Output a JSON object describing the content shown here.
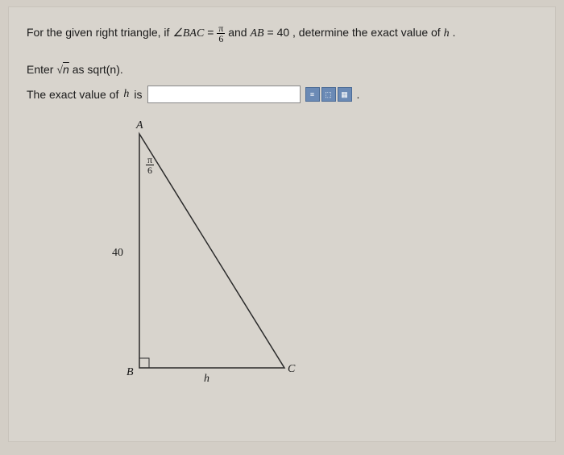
{
  "question": {
    "prefix": "For the given right triangle, if ",
    "angle_label": "∠BAC",
    "eq1": " = ",
    "frac_num": "π",
    "frac_den": "6",
    "mid": " and ",
    "side_label": "AB",
    "eq2": " = ",
    "side_value": "40",
    "suffix": ", determine the exact value of ",
    "var": "h",
    "end": "."
  },
  "instruction": {
    "prefix": "Enter ",
    "sqrt_sym": "√",
    "sqrt_arg": "n",
    "suffix": " as sqrt(n)."
  },
  "answer": {
    "prefix": "The exact value of ",
    "var": "h",
    "suffix": " is",
    "value": "",
    "period": "."
  },
  "icons": {
    "symbol1": "≡",
    "symbol2": "⬚",
    "symbol3": "▦"
  },
  "diagram": {
    "A": "A",
    "B": "B",
    "C": "C",
    "angle_num": "π",
    "angle_den": "6",
    "side_ab": "40",
    "side_bc": "h",
    "points": {
      "A": [
        60,
        10
      ],
      "B": [
        60,
        300
      ],
      "C": [
        240,
        300
      ]
    },
    "stroke": "#2a2a2a",
    "stroke_width": 1.5,
    "square_size": 12
  }
}
